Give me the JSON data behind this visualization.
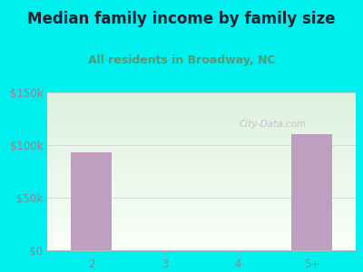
{
  "title": "Median family income by family size",
  "subtitle": "All residents in Broadway, NC",
  "categories": [
    "2",
    "3",
    "4",
    "5+"
  ],
  "values": [
    93000,
    0,
    0,
    110000
  ],
  "bar_color": "#bf9fbf",
  "background_color": "#00efef",
  "plot_bg_top": "#ddf0dd",
  "plot_bg_bottom": "#f8fff8",
  "yticks": [
    0,
    50000,
    100000,
    150000
  ],
  "ytick_labels": [
    "$0",
    "$50k",
    "$100k",
    "$150k"
  ],
  "ylim": [
    0,
    150000
  ],
  "title_fontsize": 12,
  "subtitle_fontsize": 9,
  "title_color": "#222233",
  "subtitle_color": "#559977",
  "tick_color": "#888899",
  "watermark": "City-Data.com",
  "watermark_color": "#bbbbcc"
}
